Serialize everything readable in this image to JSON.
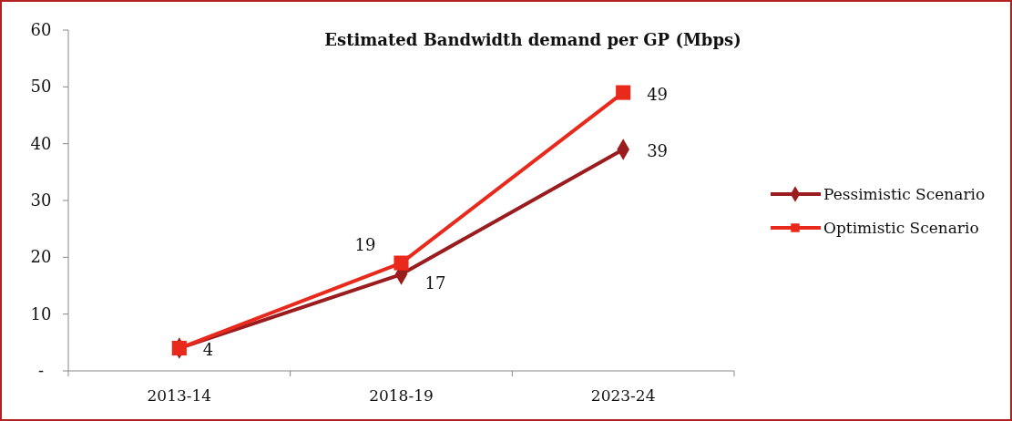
{
  "chart_data": {
    "type": "line",
    "title": "Estimated Bandwidth demand per GP (Mbps)",
    "categories": [
      "2013-14",
      "2018-19",
      "2023-24"
    ],
    "series": [
      {
        "name": "Pessimistic Scenario",
        "color": "#9b1c1f",
        "values": [
          4,
          17,
          39
        ],
        "marker": "diamond",
        "value_labels": [
          "4",
          "17",
          "39"
        ]
      },
      {
        "name": "Optimistic Scenario",
        "color": "#e8291c",
        "values": [
          4,
          19,
          49
        ],
        "marker": "square",
        "value_labels": [
          null,
          "19",
          "49"
        ]
      }
    ],
    "ylim": [
      0,
      60
    ],
    "yticks": [
      {
        "value": 0,
        "label": "-"
      },
      10,
      20,
      30,
      40,
      50,
      60
    ],
    "legend": "right",
    "grid": false
  }
}
